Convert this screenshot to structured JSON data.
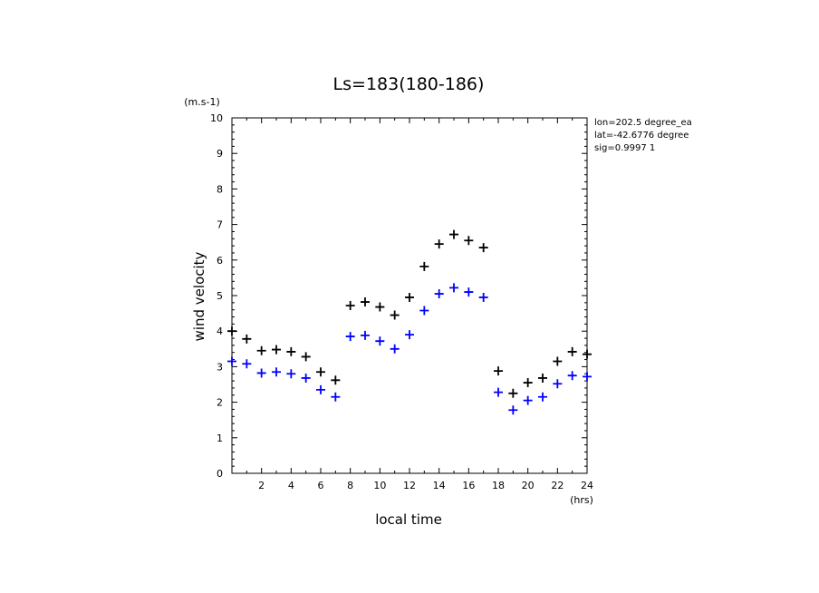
{
  "chart_data": {
    "type": "scatter",
    "title": "Ls=183(180-186)",
    "xlabel": "local time",
    "ylabel": "wind velocity",
    "x_unit": "(hrs)",
    "y_unit": "(m.s-1)",
    "xlim": [
      0,
      24
    ],
    "ylim": [
      0,
      10
    ],
    "xticks": [
      "2",
      "4",
      "6",
      "8",
      "10",
      "12",
      "14",
      "16",
      "18",
      "20",
      "22",
      "24"
    ],
    "yticks": [
      "0",
      "1",
      "2",
      "3",
      "4",
      "5",
      "6",
      "7",
      "8",
      "9",
      "10"
    ],
    "grid": false,
    "marker": "plus",
    "annotations": [
      "lon=202.5 degree_ea",
      "lat=-42.6776 degree",
      "sig=0.9997 1"
    ],
    "series": [
      {
        "color": "#000000",
        "x": [
          0,
          1,
          2,
          3,
          4,
          5,
          6,
          7,
          8,
          9,
          10,
          11,
          12,
          13,
          14,
          15,
          16,
          17,
          18,
          19,
          20,
          21,
          22,
          23,
          24
        ],
        "y": [
          4.0,
          3.78,
          3.45,
          3.48,
          3.42,
          3.28,
          2.85,
          2.62,
          4.72,
          4.82,
          4.68,
          4.45,
          4.95,
          5.82,
          6.45,
          6.72,
          6.55,
          6.35,
          2.88,
          2.25,
          2.55,
          2.68,
          3.15,
          3.42,
          3.35
        ]
      },
      {
        "color": "#0000ff",
        "x": [
          0,
          1,
          2,
          3,
          4,
          5,
          6,
          7,
          8,
          9,
          10,
          11,
          12,
          13,
          14,
          15,
          16,
          17,
          18,
          19,
          20,
          21,
          22,
          23,
          24
        ],
        "y": [
          3.15,
          3.08,
          2.82,
          2.85,
          2.8,
          2.68,
          2.35,
          2.15,
          3.85,
          3.88,
          3.72,
          3.5,
          3.9,
          4.58,
          5.05,
          5.22,
          5.1,
          4.95,
          2.28,
          1.78,
          2.05,
          2.15,
          2.52,
          2.75,
          2.72
        ]
      }
    ]
  }
}
